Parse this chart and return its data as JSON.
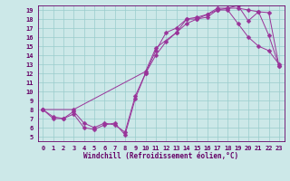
{
  "xlabel": "Windchill (Refroidissement éolien,°C)",
  "background_color": "#cce8e8",
  "line_color": "#993399",
  "grid_color": "#99cccc",
  "xlim": [
    -0.5,
    23.5
  ],
  "ylim": [
    4.5,
    19.5
  ],
  "xticks": [
    0,
    1,
    2,
    3,
    4,
    5,
    6,
    7,
    8,
    9,
    10,
    11,
    12,
    13,
    14,
    15,
    16,
    17,
    18,
    19,
    20,
    21,
    22,
    23
  ],
  "yticks": [
    5,
    6,
    7,
    8,
    9,
    10,
    11,
    12,
    13,
    14,
    15,
    16,
    17,
    18,
    19
  ],
  "line1_x": [
    0,
    1,
    2,
    3,
    4,
    5,
    6,
    7,
    8,
    9,
    10,
    11,
    12,
    13,
    14,
    15,
    16,
    17,
    18,
    19,
    20,
    21,
    22,
    23
  ],
  "line1_y": [
    8.0,
    7.0,
    7.0,
    7.5,
    6.0,
    5.8,
    6.3,
    6.5,
    5.2,
    9.2,
    12.0,
    14.5,
    16.5,
    17.0,
    18.0,
    18.0,
    18.2,
    19.0,
    19.0,
    17.5,
    16.0,
    15.0,
    14.5,
    13.0
  ],
  "line2_x": [
    0,
    1,
    2,
    3,
    4,
    5,
    6,
    7,
    8,
    9,
    10,
    11,
    12,
    13,
    14,
    15,
    16,
    17,
    18,
    19,
    20,
    21,
    22,
    23
  ],
  "line2_y": [
    8.0,
    7.2,
    7.0,
    7.8,
    6.5,
    6.0,
    6.5,
    6.3,
    5.5,
    9.5,
    12.0,
    14.0,
    15.5,
    16.5,
    18.0,
    18.2,
    18.5,
    19.2,
    19.2,
    19.2,
    19.0,
    18.8,
    18.7,
    12.8
  ],
  "line3_x": [
    0,
    3,
    10,
    11,
    13,
    14,
    15,
    16,
    17,
    18,
    19,
    20,
    21,
    22,
    23
  ],
  "line3_y": [
    8.0,
    8.0,
    12.2,
    14.8,
    16.5,
    17.5,
    18.0,
    18.5,
    19.0,
    19.2,
    19.5,
    17.8,
    18.8,
    16.2,
    12.8
  ],
  "marker_size": 2.5,
  "font_color": "#660066",
  "tick_fontsize": 5.0,
  "xlabel_fontsize": 5.5
}
